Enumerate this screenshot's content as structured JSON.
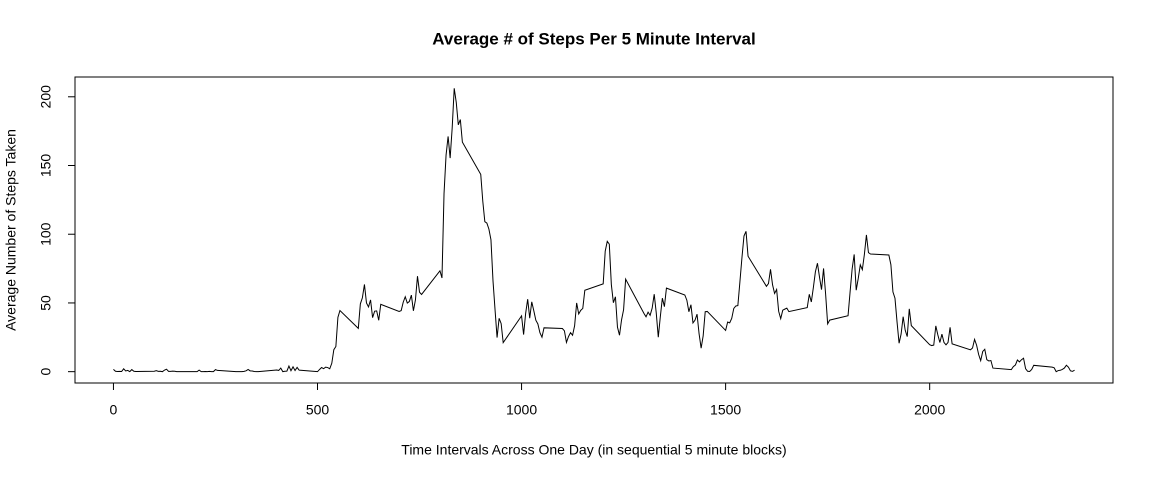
{
  "chart_data": {
    "type": "line",
    "title": "Average # of Steps Per 5 Minute Interval",
    "x_label": "Time Intervals Across One Day (in sequential 5 minute blocks)",
    "y_label": "Average Number of Steps Taken",
    "color": "#000000",
    "xlim": [
      -94.2,
      2449.2
    ],
    "ylim": [
      -8.25,
      214.4
    ],
    "xticks": [
      0,
      500,
      1000,
      1500,
      2000
    ],
    "yticks": [
      0,
      50,
      100,
      150,
      200
    ],
    "x": [
      0,
      5,
      10,
      15,
      20,
      25,
      30,
      35,
      40,
      45,
      50,
      55,
      100,
      105,
      110,
      115,
      120,
      125,
      130,
      135,
      140,
      145,
      150,
      155,
      200,
      205,
      210,
      215,
      220,
      225,
      230,
      235,
      240,
      245,
      250,
      255,
      300,
      305,
      310,
      315,
      320,
      325,
      330,
      335,
      340,
      345,
      350,
      355,
      400,
      405,
      410,
      415,
      420,
      425,
      430,
      435,
      440,
      445,
      450,
      455,
      500,
      505,
      510,
      515,
      520,
      525,
      530,
      535,
      540,
      545,
      550,
      555,
      600,
      605,
      610,
      615,
      620,
      625,
      630,
      635,
      640,
      645,
      650,
      655,
      700,
      705,
      710,
      715,
      720,
      725,
      730,
      735,
      740,
      745,
      750,
      755,
      800,
      805,
      810,
      815,
      820,
      825,
      830,
      835,
      840,
      845,
      850,
      855,
      900,
      905,
      910,
      915,
      920,
      925,
      930,
      935,
      940,
      945,
      950,
      955,
      1000,
      1005,
      1010,
      1015,
      1020,
      1025,
      1030,
      1035,
      1040,
      1045,
      1050,
      1055,
      1100,
      1105,
      1110,
      1115,
      1120,
      1125,
      1130,
      1135,
      1140,
      1145,
      1150,
      1155,
      1200,
      1205,
      1210,
      1215,
      1220,
      1225,
      1230,
      1235,
      1240,
      1245,
      1250,
      1255,
      1300,
      1305,
      1310,
      1315,
      1320,
      1325,
      1330,
      1335,
      1340,
      1345,
      1350,
      1355,
      1400,
      1405,
      1410,
      1415,
      1420,
      1425,
      1430,
      1435,
      1440,
      1445,
      1450,
      1455,
      1500,
      1505,
      1510,
      1515,
      1520,
      1525,
      1530,
      1535,
      1540,
      1545,
      1550,
      1555,
      1600,
      1605,
      1610,
      1615,
      1620,
      1625,
      1630,
      1635,
      1640,
      1645,
      1650,
      1655,
      1700,
      1705,
      1710,
      1715,
      1720,
      1725,
      1730,
      1735,
      1740,
      1745,
      1750,
      1755,
      1800,
      1805,
      1810,
      1815,
      1820,
      1825,
      1830,
      1835,
      1840,
      1845,
      1850,
      1855,
      1900,
      1905,
      1910,
      1915,
      1920,
      1925,
      1930,
      1935,
      1940,
      1945,
      1950,
      1955,
      2000,
      2005,
      2010,
      2015,
      2020,
      2025,
      2030,
      2035,
      2040,
      2045,
      2050,
      2055,
      2100,
      2105,
      2110,
      2115,
      2120,
      2125,
      2130,
      2135,
      2140,
      2145,
      2150,
      2155,
      2200,
      2205,
      2210,
      2215,
      2220,
      2225,
      2230,
      2235,
      2240,
      2245,
      2250,
      2255,
      2300,
      2305,
      2310,
      2315,
      2320,
      2325,
      2330,
      2335,
      2340,
      2345,
      2350,
      2355
    ],
    "values": [
      1.7,
      0.3,
      0.1,
      0.2,
      0.1,
      2.1,
      0.5,
      0.9,
      0,
      1.5,
      0.3,
      0.1,
      0.3,
      0.7,
      0.2,
      0.3,
      0,
      1.1,
      1.8,
      0.2,
      0.2,
      0.4,
      0.3,
      0,
      0,
      0,
      1.1,
      0,
      0,
      0.1,
      0,
      0.2,
      0,
      0,
      1.5,
      0.9,
      0,
      0,
      0,
      0,
      0.2,
      0.6,
      1.6,
      0.6,
      0.5,
      0.1,
      0,
      0,
      1.2,
      0.9,
      2.6,
      0,
      0.3,
      0.4,
      4.1,
      0.7,
      3.5,
      0.8,
      3.1,
      1.1,
      0,
      1.6,
      3.0,
      2.2,
      3.3,
      3.0,
      2.1,
      6.1,
      16.0,
      18.3,
      39.5,
      44.5,
      31.5,
      49.3,
      53.8,
      63.5,
      50.0,
      47.1,
      52.2,
      39.3,
      44.0,
      44.2,
      37.4,
      49.0,
      43.8,
      44.4,
      50.5,
      54.5,
      49.9,
      51.0,
      55.7,
      44.3,
      52.3,
      69.5,
      57.8,
      56.2,
      73.4,
      68.2,
      129.4,
      157.5,
      171.2,
      155.4,
      177.3,
      206.2,
      195.9,
      179.6,
      183.4,
      167.0,
      143.5,
      124.0,
      109.1,
      108.1,
      103.7,
      96.0,
      66.2,
      45.2,
      24.8,
      38.8,
      35.0,
      21.1,
      40.6,
      27.0,
      42.4,
      52.7,
      38.9,
      50.8,
      44.3,
      37.4,
      34.7,
      28.3,
      25.1,
      31.9,
      31.4,
      29.7,
      21.3,
      25.5,
      28.4,
      26.5,
      33.4,
      50.0,
      42.0,
      44.6,
      46.0,
      59.2,
      63.9,
      87.7,
      94.8,
      92.8,
      63.4,
      50.2,
      54.5,
      32.4,
      26.5,
      37.7,
      45.1,
      67.3,
      42.3,
      39.9,
      43.3,
      41.0,
      46.2,
      56.4,
      42.8,
      25.1,
      40.0,
      53.5,
      47.3,
      60.8,
      55.8,
      52.0,
      43.6,
      48.7,
      35.5,
      37.5,
      41.8,
      27.5,
      17.1,
      26.1,
      43.6,
      43.8,
      30.0,
      36.1,
      35.5,
      38.8,
      46.0,
      47.8,
      48.1,
      65.3,
      82.9,
      98.7,
      102.1,
      84.0,
      62.1,
      64.1,
      74.5,
      63.2,
      56.9,
      59.8,
      43.9,
      38.6,
      44.7,
      45.5,
      46.2,
      43.7,
      46.6,
      56.3,
      50.7,
      61.2,
      72.7,
      78.9,
      68.9,
      59.7,
      75.1,
      56.5,
      34.8,
      37.5,
      40.7,
      58.0,
      74.7,
      85.3,
      59.3,
      67.8,
      77.7,
      74.2,
      85.3,
      99.5,
      86.6,
      85.6,
      84.9,
      77.8,
      58.0,
      53.4,
      36.3,
      20.7,
      27.4,
      40.0,
      30.2,
      25.5,
      45.7,
      33.5,
      19.6,
      19.0,
      19.3,
      33.3,
      26.8,
      21.2,
      27.3,
      21.3,
      19.5,
      21.3,
      32.3,
      20.2,
      15.9,
      17.2,
      23.5,
      19.2,
      12.5,
      8.0,
      14.7,
      16.3,
      8.7,
      7.8,
      8.1,
      2.6,
      1.5,
      3.7,
      4.8,
      8.5,
      7.1,
      8.7,
      9.8,
      2.2,
      0.3,
      0.1,
      1.6,
      4.6,
      3.3,
      2.8,
      0,
      0.8,
      1.0,
      1.6,
      2.6,
      4.7,
      3.3,
      0.6,
      0.2,
      1.1
    ]
  }
}
